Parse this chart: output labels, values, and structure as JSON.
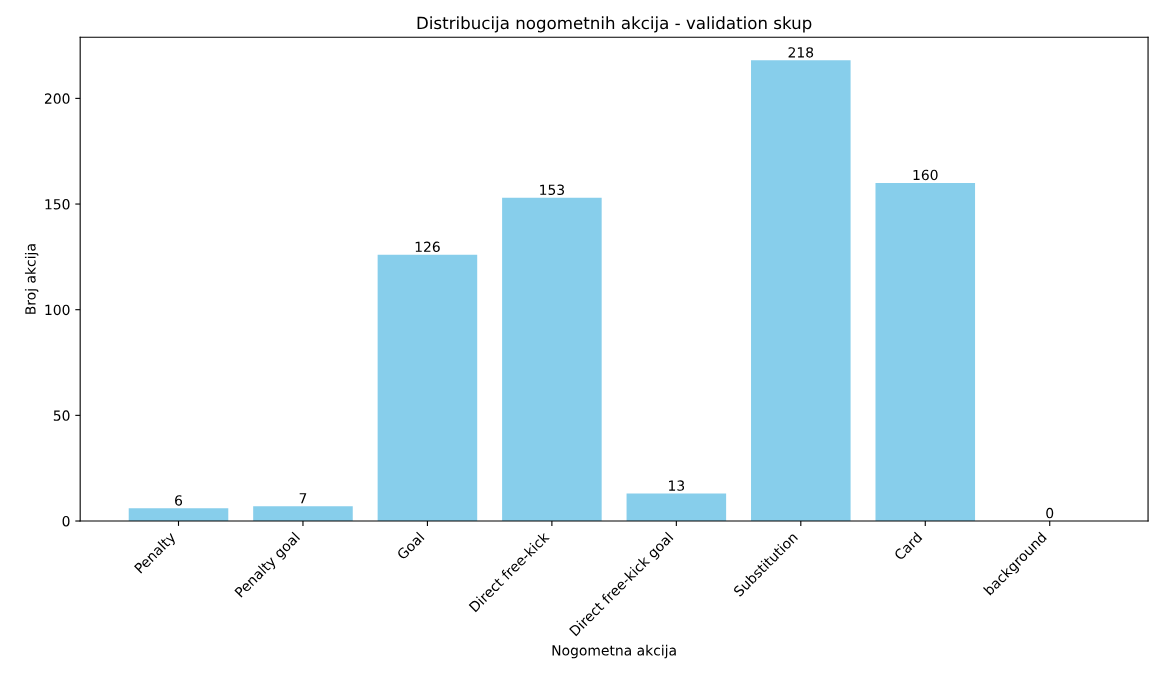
{
  "chart_data": {
    "type": "bar",
    "title": "Distribucija nogometnih akcija - validation skup",
    "xlabel": "Nogometna akcija",
    "ylabel": "Broj akcija",
    "categories": [
      "Penalty",
      "Penalty goal",
      "Goal",
      "Direct free-kick",
      "Direct free-kick goal",
      "Substitution",
      "Card",
      "background"
    ],
    "values": [
      6,
      7,
      126,
      153,
      13,
      218,
      160,
      0
    ],
    "color": "#87ceeb",
    "ylim": [
      0,
      228.9
    ],
    "yticks": [
      0,
      50,
      100,
      150,
      200
    ],
    "data_labels": true,
    "grid": false
  }
}
